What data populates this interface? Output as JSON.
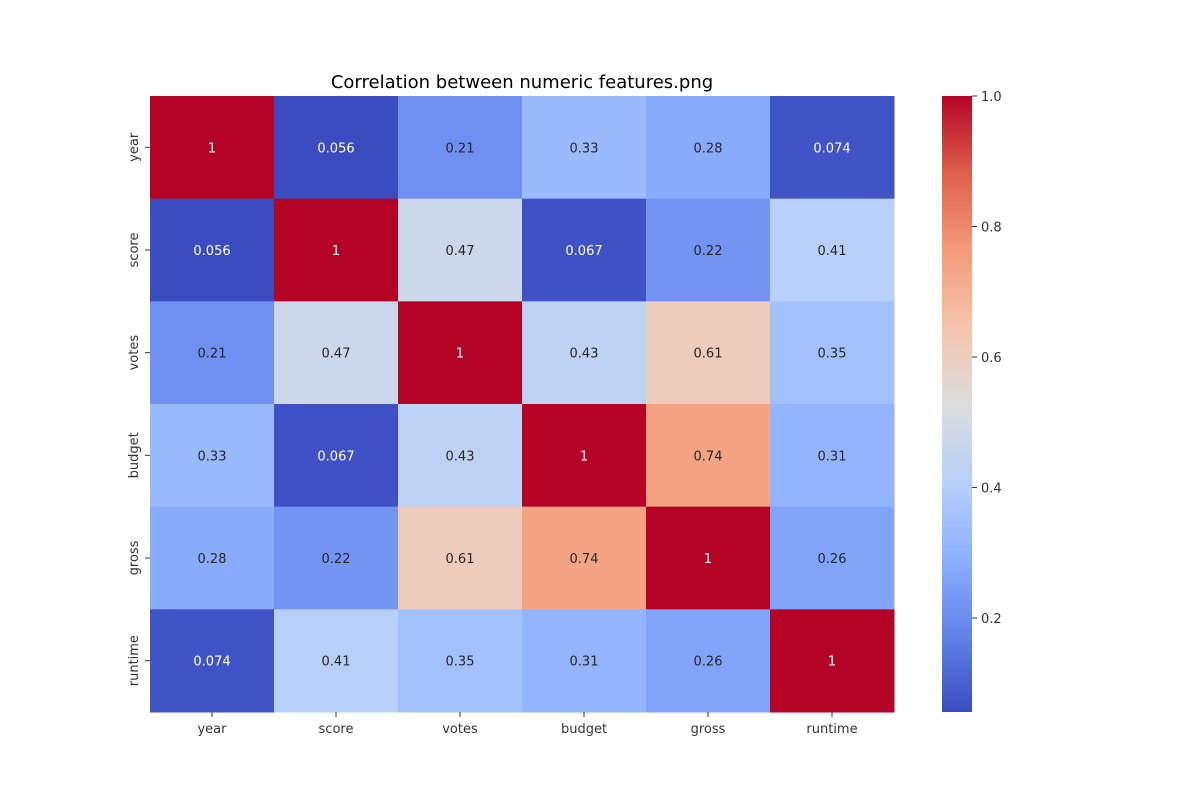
{
  "chart_data": {
    "type": "heatmap",
    "title": "Correlation between numeric features.png",
    "x_categories": [
      "year",
      "score",
      "votes",
      "budget",
      "gross",
      "runtime"
    ],
    "y_categories": [
      "year",
      "score",
      "votes",
      "budget",
      "gross",
      "runtime"
    ],
    "values": [
      [
        1,
        0.056,
        0.21,
        0.33,
        0.28,
        0.074
      ],
      [
        0.056,
        1,
        0.47,
        0.067,
        0.22,
        0.41
      ],
      [
        0.21,
        0.47,
        1,
        0.43,
        0.61,
        0.35
      ],
      [
        0.33,
        0.067,
        0.43,
        1,
        0.74,
        0.31
      ],
      [
        0.28,
        0.22,
        0.61,
        0.74,
        1,
        0.26
      ],
      [
        0.074,
        0.41,
        0.35,
        0.31,
        0.26,
        1
      ]
    ],
    "annotations": [
      [
        "1",
        "0.056",
        "0.21",
        "0.33",
        "0.28",
        "0.074"
      ],
      [
        "0.056",
        "1",
        "0.47",
        "0.067",
        "0.22",
        "0.41"
      ],
      [
        "0.21",
        "0.47",
        "1",
        "0.43",
        "0.61",
        "0.35"
      ],
      [
        "0.33",
        "0.067",
        "0.43",
        "1",
        "0.74",
        "0.31"
      ],
      [
        "0.28",
        "0.22",
        "0.61",
        "0.74",
        "1",
        "0.26"
      ],
      [
        "0.074",
        "0.41",
        "0.35",
        "0.31",
        "0.26",
        "1"
      ]
    ],
    "colormap": "coolwarm",
    "vmin": 0.056,
    "vmax": 1,
    "colorbar": {
      "ticks": [
        0.2,
        0.4,
        0.6,
        0.8,
        1.0
      ],
      "tick_labels": [
        "0.2",
        "0.4",
        "0.6",
        "0.8",
        "1.0"
      ]
    },
    "grid": false,
    "legend": "colorbar-right"
  }
}
